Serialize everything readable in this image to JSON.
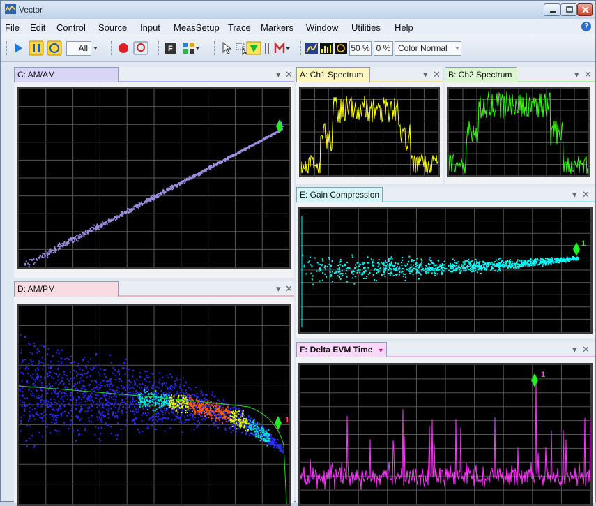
{
  "window": {
    "title": "Vector"
  },
  "menu": [
    "File",
    "Edit",
    "Control",
    "Source",
    "Input",
    "MeasSetup",
    "Trace",
    "Markers",
    "Window",
    "Utilities",
    "Help"
  ],
  "toolbar": {
    "all_label": "All",
    "zoom_50": "50 %",
    "zoom_0": "0 %",
    "color_mode": "Color Normal"
  },
  "panels": {
    "c": {
      "title": "C: AM/AM",
      "marker": "1"
    },
    "d": {
      "title": "D: AM/PM",
      "marker": "1"
    },
    "a": {
      "title": "A: Ch1 Spectrum"
    },
    "b": {
      "title": "B: Ch2 Spectrum"
    },
    "e": {
      "title": "E: Gain Compression",
      "marker": "1"
    },
    "f": {
      "title": "F: Delta EVM Time",
      "marker": "1"
    }
  },
  "colors": {
    "c": "#9b8fe0",
    "d_tab": "#f6d0d6",
    "a": "#ffff00",
    "b": "#33ff00",
    "e": "#00ffff",
    "f": "#ff33ff",
    "marker": "#22ee22"
  }
}
